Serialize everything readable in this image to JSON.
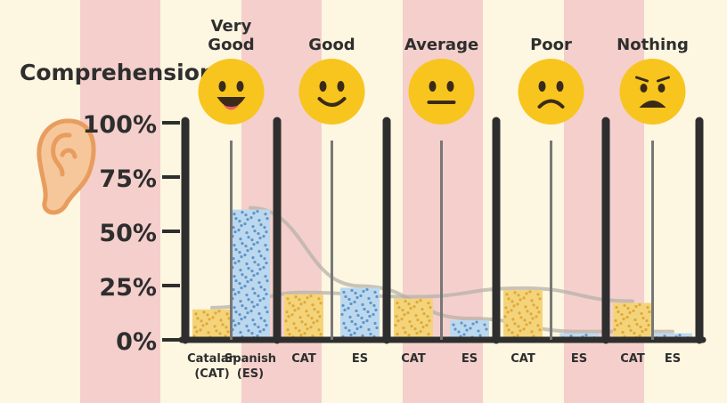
{
  "chart_data": {
    "type": "bar",
    "title": "Comprehension",
    "yticks": [
      "0%",
      "25%",
      "50%",
      "75%",
      "100%"
    ],
    "ylim": [
      0,
      100
    ],
    "categories": [
      "Very Good",
      "Good",
      "Average",
      "Poor",
      "Nothing"
    ],
    "category_title_lines": [
      [
        "Very",
        "Good"
      ],
      [
        "Good"
      ],
      [
        "Average"
      ],
      [
        "Poor"
      ],
      [
        "Nothing"
      ]
    ],
    "emoji_icons": [
      "grinning-face-icon",
      "smiling-face-icon",
      "neutral-face-icon",
      "frowning-face-icon",
      "worried-face-icon"
    ],
    "series": [
      {
        "name": "CAT",
        "values": [
          14,
          21,
          19,
          23,
          17
        ],
        "color": "#f4d47a",
        "dot_color": "#e0a93a"
      },
      {
        "name": "ES",
        "values": [
          60,
          24,
          9,
          3,
          3
        ],
        "color": "#bcd8ee",
        "dot_color": "#5f95c8"
      }
    ],
    "xlabels": [
      [
        "Catalan",
        "(CAT)"
      ],
      [
        "Spanish",
        "(ES)"
      ],
      [
        "CAT"
      ],
      [
        "ES"
      ],
      [
        "CAT"
      ],
      [
        "ES"
      ],
      [
        "CAT"
      ],
      [
        "ES"
      ],
      [
        "CAT"
      ],
      [
        "ES"
      ]
    ],
    "grid": false,
    "colors": {
      "background": "#fdf6e1",
      "stripe": "#f4cfcc",
      "axis": "#2e2e2e",
      "emoji": "#f7c51e",
      "emoji_dark": "#3a2a1a",
      "ear": "#f0b07a",
      "trend": "#b7b1a8"
    }
  }
}
